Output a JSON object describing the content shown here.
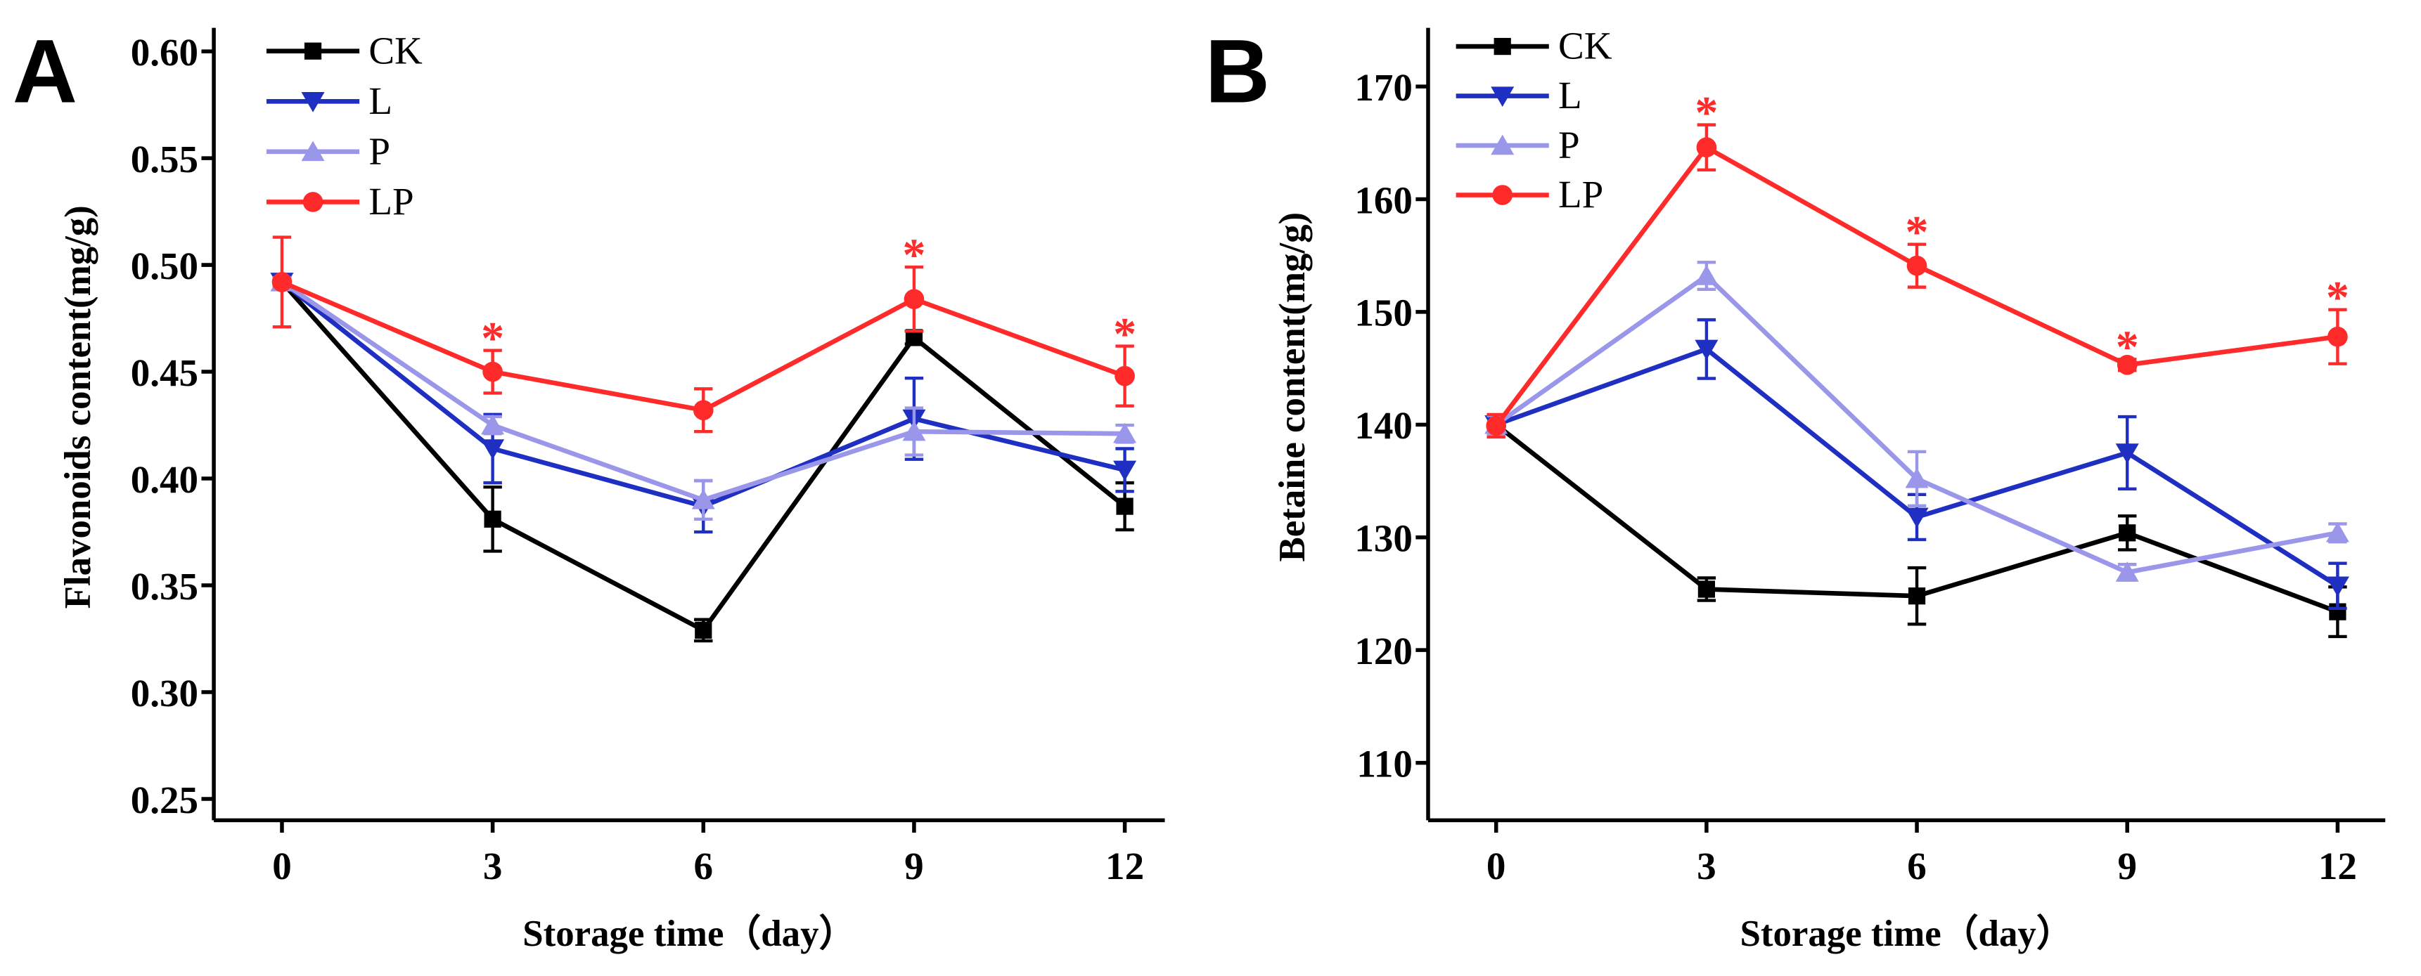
{
  "chart_data": [
    {
      "type": "line",
      "panel_label": "A",
      "title": "",
      "xlabel": "Storage time（day）",
      "ylabel": "Flavonoids content(mg/g)",
      "x": [
        0,
        3,
        6,
        9,
        12
      ],
      "x_tick_labels": [
        "0",
        "3",
        "6",
        "9",
        "12"
      ],
      "y_ticks": [
        0.25,
        0.3,
        0.35,
        0.4,
        0.45,
        0.5,
        0.55,
        0.6
      ],
      "y_tick_labels": [
        "0.25",
        "0.30",
        "0.35",
        "0.40",
        "0.45",
        "0.50",
        "0.55",
        "0.60"
      ],
      "xlim": [
        -0.97,
        12.57
      ],
      "ylim": [
        0.24,
        0.611
      ],
      "grid": false,
      "legend_position": "top-left",
      "series": [
        {
          "name": "CK",
          "marker": "square",
          "color": "#000000",
          "values": [
            0.492,
            0.381,
            0.329,
            0.466,
            0.387
          ],
          "errors": [
            0.002,
            0.015,
            0.005,
            0.003,
            0.011
          ]
        },
        {
          "name": "L",
          "marker": "triangle-down",
          "color": "#1f2fc2",
          "values": [
            0.492,
            0.414,
            0.387,
            0.428,
            0.404
          ],
          "errors": [
            0.002,
            0.016,
            0.012,
            0.019,
            0.01
          ]
        },
        {
          "name": "P",
          "marker": "triangle-up",
          "color": "#9a96ea",
          "values": [
            0.492,
            0.425,
            0.39,
            0.422,
            0.421
          ],
          "errors": [
            0.002,
            0.004,
            0.009,
            0.011,
            0.004
          ]
        },
        {
          "name": "LP",
          "marker": "circle",
          "color": "#ff2a2a",
          "values": [
            0.492,
            0.45,
            0.432,
            0.484,
            0.448
          ],
          "errors": [
            0.021,
            0.01,
            0.01,
            0.015,
            0.014
          ]
        }
      ],
      "annotations": [
        {
          "series": "LP",
          "x": 3,
          "text": "*"
        },
        {
          "series": "LP",
          "x": 9,
          "text": "*"
        },
        {
          "series": "LP",
          "x": 12,
          "text": "*"
        }
      ]
    },
    {
      "type": "line",
      "panel_label": "B",
      "title": "",
      "xlabel": "Storage time（day）",
      "ylabel": "Betaine content(mg/g)",
      "x": [
        0,
        3,
        6,
        9,
        12
      ],
      "x_tick_labels": [
        "0",
        "3",
        "6",
        "9",
        "12"
      ],
      "y_ticks": [
        110,
        120,
        130,
        140,
        150,
        160,
        170
      ],
      "y_tick_labels": [
        "110",
        "120",
        "130",
        "140",
        "150",
        "160",
        "170"
      ],
      "xlim": [
        -0.97,
        12.68
      ],
      "ylim": [
        104.9,
        175.2
      ],
      "grid": false,
      "legend_position": "top-left",
      "series": [
        {
          "name": "CK",
          "marker": "square",
          "color": "#000000",
          "values": [
            140.0,
            125.4,
            124.8,
            130.4,
            123.4
          ],
          "errors": [
            0.8,
            1.0,
            2.5,
            1.5,
            2.2
          ]
        },
        {
          "name": "L",
          "marker": "triangle-down",
          "color": "#1f2fc2",
          "values": [
            140.0,
            146.7,
            131.8,
            137.5,
            125.7
          ],
          "errors": [
            0.8,
            2.6,
            2.0,
            3.2,
            2.0
          ]
        },
        {
          "name": "P",
          "marker": "triangle-up",
          "color": "#9a96ea",
          "values": [
            140.0,
            153.2,
            135.2,
            126.9,
            130.4
          ],
          "errors": [
            0.8,
            1.2,
            2.4,
            0.7,
            0.8
          ]
        },
        {
          "name": "LP",
          "marker": "circle",
          "color": "#ff2a2a",
          "values": [
            139.9,
            164.6,
            154.1,
            145.3,
            147.8
          ],
          "errors": [
            1.0,
            2.0,
            1.9,
            0.5,
            2.4
          ]
        }
      ],
      "annotations": [
        {
          "series": "LP",
          "x": 3,
          "text": "*"
        },
        {
          "series": "LP",
          "x": 6,
          "text": "*"
        },
        {
          "series": "LP",
          "x": 9,
          "text": "*"
        },
        {
          "series": "LP",
          "x": 12,
          "text": "*"
        }
      ]
    }
  ]
}
